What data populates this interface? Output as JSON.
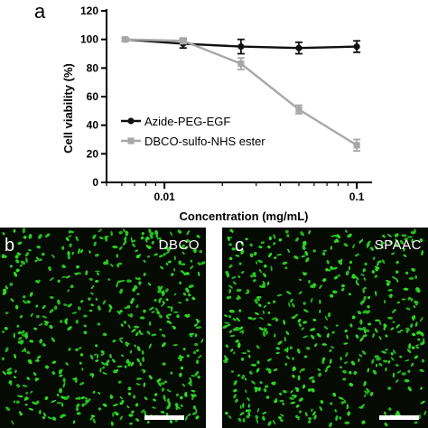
{
  "panel_a": {
    "letter": "a"
  },
  "chart_data": {
    "type": "line",
    "title": "",
    "xlabel": "Concentration (mg/mL)",
    "ylabel": "Cell viability (%)",
    "xscale": "log",
    "xlim": [
      0.005,
      0.12
    ],
    "ylim": [
      0,
      120
    ],
    "x_ticks": [
      0.01,
      0.1
    ],
    "x_tick_labels": [
      "0.01",
      "0.1"
    ],
    "y_ticks": [
      0,
      20,
      40,
      60,
      80,
      100,
      120
    ],
    "legend_position": "middle-left",
    "grid": false,
    "series": [
      {
        "name": "Azide-PEG-EGF",
        "color": "#111111",
        "marker": "circle",
        "x": [
          0.00625,
          0.0125,
          0.025,
          0.05,
          0.1
        ],
        "y": [
          100,
          97,
          95,
          94,
          95
        ],
        "error": [
          1,
          3,
          5,
          4,
          4
        ]
      },
      {
        "name": "DBCO-sulfo-NHS ester",
        "color": "#a8a8a8",
        "marker": "square",
        "x": [
          0.00625,
          0.0125,
          0.025,
          0.05,
          0.1
        ],
        "y": [
          100,
          99,
          83,
          51,
          26
        ],
        "error": [
          1,
          2,
          4,
          3,
          4
        ]
      }
    ]
  },
  "panel_b": {
    "letter": "b",
    "tag": "DBCO"
  },
  "panel_c": {
    "letter": "c",
    "tag": "SPAAC"
  },
  "colors": {
    "micrograph_bg": "#050a03",
    "cell": "#2fdd26",
    "scale_bar": "#ffffff"
  }
}
